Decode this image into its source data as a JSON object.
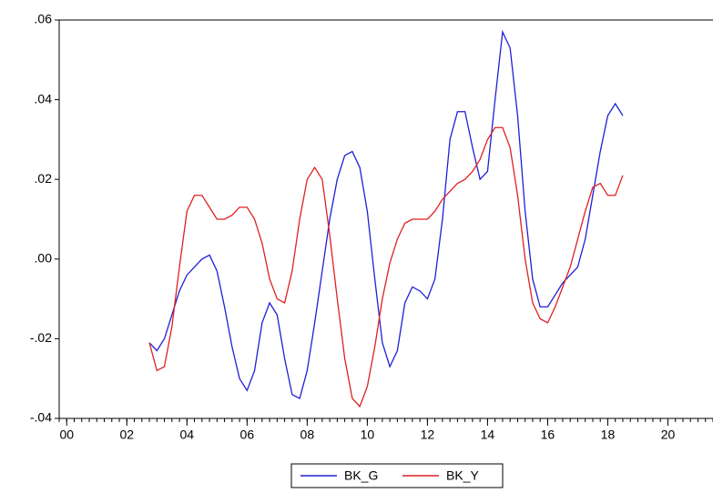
{
  "chart_data": {
    "type": "line",
    "x": [
      2002.75,
      2003,
      2003.25,
      2003.5,
      2003.75,
      2004,
      2004.25,
      2004.5,
      2004.75,
      2005,
      2005.25,
      2005.5,
      2005.75,
      2006,
      2006.25,
      2006.5,
      2006.75,
      2007,
      2007.25,
      2007.5,
      2007.75,
      2008,
      2008.25,
      2008.5,
      2008.75,
      2009,
      2009.25,
      2009.5,
      2009.75,
      2010,
      2010.25,
      2010.5,
      2010.75,
      2011,
      2011.25,
      2011.5,
      2011.75,
      2012,
      2012.25,
      2012.5,
      2012.75,
      2013,
      2013.25,
      2013.5,
      2013.75,
      2014,
      2014.25,
      2014.5,
      2014.75,
      2015,
      2015.25,
      2015.5,
      2015.75,
      2016,
      2016.25,
      2016.5,
      2016.75,
      2017,
      2017.25,
      2017.5,
      2017.75,
      2018,
      2018.25,
      2018.5
    ],
    "series": [
      {
        "name": "BK_G",
        "color": "#1f1fd6",
        "values": [
          -0.021,
          -0.023,
          -0.02,
          -0.014,
          -0.008,
          -0.004,
          -0.002,
          0.0,
          0.001,
          -0.003,
          -0.012,
          -0.022,
          -0.03,
          -0.033,
          -0.028,
          -0.016,
          -0.011,
          -0.014,
          -0.025,
          -0.034,
          -0.035,
          -0.028,
          -0.016,
          -0.003,
          0.01,
          0.02,
          0.026,
          0.027,
          0.023,
          0.012,
          -0.005,
          -0.021,
          -0.027,
          -0.023,
          -0.011,
          -0.007,
          -0.008,
          -0.01,
          -0.005,
          0.01,
          0.03,
          0.037,
          0.037,
          0.028,
          0.02,
          0.022,
          0.04,
          0.057,
          0.053,
          0.036,
          0.012,
          -0.005,
          -0.012,
          -0.012,
          -0.009,
          -0.006,
          -0.004,
          -0.002,
          0.005,
          0.016,
          0.027,
          0.036,
          0.039,
          0.036
        ]
      },
      {
        "name": "BK_Y",
        "color": "#e02020",
        "values": [
          -0.021,
          -0.028,
          -0.027,
          -0.017,
          -0.002,
          0.012,
          0.016,
          0.016,
          0.013,
          0.01,
          0.01,
          0.011,
          0.013,
          0.013,
          0.01,
          0.004,
          -0.005,
          -0.01,
          -0.011,
          -0.003,
          0.01,
          0.02,
          0.023,
          0.02,
          0.006,
          -0.01,
          -0.025,
          -0.035,
          -0.037,
          -0.032,
          -0.022,
          -0.01,
          -0.001,
          0.005,
          0.009,
          0.01,
          0.01,
          0.01,
          0.012,
          0.015,
          0.017,
          0.019,
          0.02,
          0.022,
          0.025,
          0.03,
          0.033,
          0.033,
          0.028,
          0.016,
          0.0,
          -0.011,
          -0.015,
          -0.016,
          -0.012,
          -0.007,
          -0.002,
          0.005,
          0.012,
          0.018,
          0.019,
          0.016,
          0.016,
          0.021
        ]
      }
    ],
    "xlim": [
      1999.75,
      2021.5
    ],
    "xticks": [
      {
        "value": 2000,
        "label": "00"
      },
      {
        "value": 2002,
        "label": "02"
      },
      {
        "value": 2004,
        "label": "04"
      },
      {
        "value": 2006,
        "label": "06"
      },
      {
        "value": 2008,
        "label": "08"
      },
      {
        "value": 2010,
        "label": "10"
      },
      {
        "value": 2012,
        "label": "12"
      },
      {
        "value": 2014,
        "label": "14"
      },
      {
        "value": 2016,
        "label": "16"
      },
      {
        "value": 2018,
        "label": "18"
      },
      {
        "value": 2020,
        "label": "20"
      }
    ],
    "ylim": [
      -0.04,
      0.06
    ],
    "yticks": [
      {
        "value": -0.04,
        "label": "-.04"
      },
      {
        "value": -0.02,
        "label": "-.02"
      },
      {
        "value": 0,
        "label": ".00"
      },
      {
        "value": 0.02,
        "label": ".02"
      },
      {
        "value": 0.04,
        "label": ".04"
      },
      {
        "value": 0.06,
        "label": ".06"
      }
    ],
    "grid": false,
    "legend": "bottom"
  }
}
